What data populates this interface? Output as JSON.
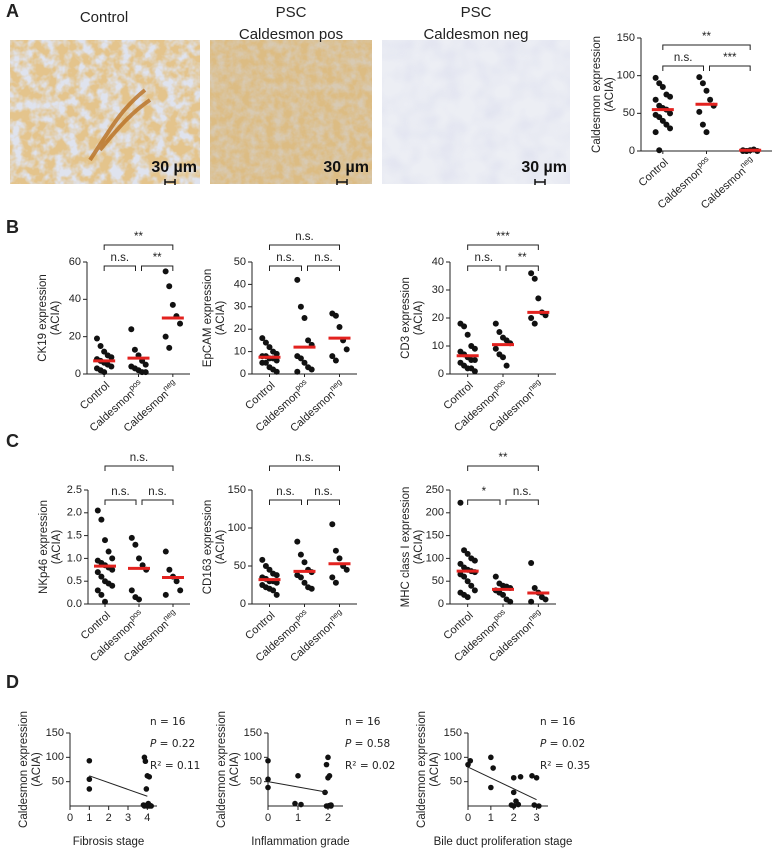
{
  "panel_labels": [
    "A",
    "B",
    "C",
    "D"
  ],
  "images": [
    {
      "caption": [
        "Control"
      ],
      "scale_bar": "30 µm"
    },
    {
      "caption": [
        "PSC",
        "Caldesmon pos"
      ],
      "scale_bar": "30 µm"
    },
    {
      "caption": [
        "PSC",
        "Caldesmon neg"
      ],
      "scale_bar": "30 µm"
    }
  ],
  "chart_data": [
    {
      "type": "dot",
      "ylabel": [
        "Caldesmon expression",
        "(ACIA)"
      ],
      "categories": [
        {
          "text": "Control"
        },
        {
          "text": "Caldesmon",
          "sup": "pos"
        },
        {
          "text": "Caldesmon",
          "sup": "neg"
        }
      ],
      "values": [
        [
          97,
          90,
          85,
          75,
          72,
          68,
          60,
          57,
          55,
          50,
          48,
          45,
          40,
          35,
          30,
          25,
          1
        ],
        [
          98,
          90,
          80,
          68,
          60,
          52,
          35,
          25
        ],
        [
          0,
          0,
          1,
          2,
          0,
          1,
          0
        ]
      ],
      "means": [
        55,
        62,
        1
      ],
      "ylim": [
        0,
        150
      ],
      "yticks": [
        0,
        50,
        100,
        150
      ],
      "brackets": [
        {
          "between": [
            0,
            2
          ],
          "label": "**"
        },
        {
          "between": [
            0,
            1
          ],
          "label": "n.s."
        },
        {
          "between": [
            1,
            2
          ],
          "label": "***"
        }
      ]
    },
    {
      "type": "dot",
      "ylabel": [
        "CK19 expression",
        "(ACIA)"
      ],
      "categories": [
        {
          "text": "Control"
        },
        {
          "text": "Caldesmon",
          "sup": "pos"
        },
        {
          "text": "Caldesmon",
          "sup": "neg"
        }
      ],
      "values": [
        [
          19,
          15,
          12,
          10,
          9,
          8,
          7,
          6,
          5,
          4,
          3,
          2,
          1
        ],
        [
          24,
          13,
          10,
          7,
          5,
          4,
          3,
          2,
          1,
          1
        ],
        [
          55,
          47,
          37,
          31,
          27,
          20,
          14
        ]
      ],
      "means": [
        7,
        8.5,
        30
      ],
      "ylim": [
        0,
        60
      ],
      "yticks": [
        0,
        20,
        40,
        60
      ],
      "brackets": [
        {
          "between": [
            0,
            2
          ],
          "label": "**"
        },
        {
          "between": [
            0,
            1
          ],
          "label": "n.s."
        },
        {
          "between": [
            1,
            2
          ],
          "label": "**"
        }
      ]
    },
    {
      "type": "dot",
      "ylabel": [
        "EpCAM expression",
        "(ACIA)"
      ],
      "categories": [
        {
          "text": "Control"
        },
        {
          "text": "Caldesmon",
          "sup": "pos"
        },
        {
          "text": "Caldesmon",
          "sup": "neg"
        }
      ],
      "values": [
        [
          16,
          14,
          12,
          10,
          9,
          8,
          8,
          7,
          7,
          6,
          5,
          5,
          3,
          2,
          1
        ],
        [
          42,
          30,
          25,
          15,
          13,
          8,
          7,
          5,
          3,
          2,
          1
        ],
        [
          27,
          26,
          21,
          15,
          11,
          8,
          6
        ]
      ],
      "means": [
        7.5,
        12,
        16
      ],
      "ylim": [
        0,
        50
      ],
      "yticks": [
        0,
        10,
        20,
        30,
        40,
        50
      ],
      "brackets": [
        {
          "between": [
            0,
            2
          ],
          "label": "n.s."
        },
        {
          "between": [
            0,
            1
          ],
          "label": "n.s."
        },
        {
          "between": [
            1,
            2
          ],
          "label": "n.s."
        }
      ]
    },
    {
      "type": "dot",
      "ylabel": [
        "CD3 expression",
        "(ACIA)"
      ],
      "categories": [
        {
          "text": "Control"
        },
        {
          "text": "Caldesmon",
          "sup": "pos"
        },
        {
          "text": "Caldesmon",
          "sup": "neg"
        }
      ],
      "values": [
        [
          18,
          17,
          14,
          10,
          9,
          8,
          7,
          6,
          5,
          5,
          4,
          3,
          2,
          2,
          1
        ],
        [
          18,
          15,
          13,
          12,
          11,
          9,
          7,
          6,
          3
        ],
        [
          36,
          34,
          27,
          22,
          21,
          20,
          18
        ]
      ],
      "means": [
        6.5,
        10.5,
        22
      ],
      "ylim": [
        0,
        40
      ],
      "yticks": [
        0,
        10,
        20,
        30,
        40
      ],
      "brackets": [
        {
          "between": [
            0,
            2
          ],
          "label": "***"
        },
        {
          "between": [
            0,
            1
          ],
          "label": "n.s."
        },
        {
          "between": [
            1,
            2
          ],
          "label": "**"
        }
      ]
    },
    {
      "type": "dot",
      "ylabel": [
        "NKp46 expression",
        "(ACIA)"
      ],
      "categories": [
        {
          "text": "Control"
        },
        {
          "text": "Caldesmon",
          "sup": "pos"
        },
        {
          "text": "Caldesmon",
          "sup": "neg"
        }
      ],
      "values": [
        [
          2.05,
          1.85,
          1.4,
          1.15,
          1.0,
          0.95,
          0.9,
          0.85,
          0.8,
          0.75,
          0.7,
          0.6,
          0.5,
          0.45,
          0.4,
          0.3,
          0.2,
          0.05
        ],
        [
          1.45,
          1.3,
          1.0,
          0.85,
          0.75,
          0.3,
          0.15,
          0.1
        ],
        [
          1.15,
          0.75,
          0.6,
          0.5,
          0.3,
          0.2
        ]
      ],
      "means": [
        0.83,
        0.78,
        0.58
      ],
      "ylim": [
        0,
        2.5
      ],
      "yticks": [
        {
          "value": 0,
          "label": "0.0"
        },
        0.5,
        {
          "value": 1,
          "label": "1.0"
        },
        1.5,
        {
          "value": 2,
          "label": "2.0"
        },
        2.5
      ],
      "brackets": [
        {
          "between": [
            0,
            2
          ],
          "label": "n.s."
        },
        {
          "between": [
            0,
            1
          ],
          "label": "n.s."
        },
        {
          "between": [
            1,
            2
          ],
          "label": "n.s."
        }
      ]
    },
    {
      "type": "dot",
      "ylabel": [
        "CD163 expression",
        "(ACIA)"
      ],
      "categories": [
        {
          "text": "Control"
        },
        {
          "text": "Caldesmon",
          "sup": "pos"
        },
        {
          "text": "Caldesmon",
          "sup": "neg"
        }
      ],
      "values": [
        [
          58,
          50,
          45,
          40,
          38,
          35,
          33,
          30,
          30,
          28,
          25,
          22,
          20,
          18,
          12
        ],
        [
          82,
          65,
          55,
          45,
          42,
          38,
          35,
          28,
          22,
          20
        ],
        [
          105,
          70,
          60,
          50,
          45,
          35,
          28
        ]
      ],
      "means": [
        32,
        43,
        53
      ],
      "ylim": [
        0,
        150
      ],
      "yticks": [
        0,
        50,
        100,
        150
      ],
      "brackets": [
        {
          "between": [
            0,
            2
          ],
          "label": "n.s."
        },
        {
          "between": [
            0,
            1
          ],
          "label": "n.s."
        },
        {
          "between": [
            1,
            2
          ],
          "label": "n.s."
        }
      ]
    },
    {
      "type": "dot",
      "ylabel": [
        "MHC class I expression",
        "(ACIA)"
      ],
      "categories": [
        {
          "text": "Control"
        },
        {
          "text": "Caldesmon",
          "sup": "pos"
        },
        {
          "text": "Caldesmon",
          "sup": "neg"
        }
      ],
      "values": [
        [
          222,
          118,
          110,
          100,
          95,
          88,
          80,
          75,
          72,
          70,
          65,
          60,
          50,
          40,
          30,
          25,
          20,
          15
        ],
        [
          60,
          45,
          40,
          38,
          35,
          30,
          25,
          20,
          10,
          5
        ],
        [
          90,
          35,
          25,
          15,
          10,
          5
        ]
      ],
      "means": [
        72,
        32,
        24
      ],
      "ylim": [
        0,
        250
      ],
      "yticks": [
        0,
        50,
        100,
        150,
        200,
        250
      ],
      "brackets": [
        {
          "between": [
            0,
            2
          ],
          "label": "**"
        },
        {
          "between": [
            0,
            1
          ],
          "label": "*"
        },
        {
          "between": [
            1,
            2
          ],
          "label": "n.s."
        }
      ]
    },
    {
      "type": "scatter",
      "ylabel": [
        "Caldesmon expression",
        "(ACIA)"
      ],
      "xlabel": "Fibrosis stage",
      "x": [
        1,
        1,
        1,
        3.85,
        3.9,
        4,
        4.1,
        3.95,
        4.05,
        3.8,
        3.9,
        4,
        4.1,
        4.2,
        3.85,
        4.15
      ],
      "y": [
        93,
        55,
        35,
        100,
        92,
        62,
        60,
        35,
        5,
        2,
        1,
        0,
        0,
        0,
        0,
        1
      ],
      "xlim": [
        0,
        4.5
      ],
      "xticks": [
        0,
        1,
        2,
        3,
        4
      ],
      "ylim": [
        0,
        150
      ],
      "yticks": [
        50,
        100,
        150
      ],
      "fit": {
        "x": [
          1,
          4
        ],
        "y": [
          62,
          20
        ]
      },
      "stats": {
        "n": "n = 16",
        "p_symbol": "P",
        "p": " = 0.22",
        "r2": "R² = 0.11"
      }
    },
    {
      "type": "scatter",
      "ylabel": [
        "Caldesmon expression",
        "(ACIA)"
      ],
      "xlabel": "Inflammation grade",
      "x": [
        0,
        0,
        0,
        1,
        0.9,
        1.1,
        2,
        1.95,
        2.05,
        2,
        1.9,
        2.1,
        2,
        1.95,
        2.1,
        2.05
      ],
      "y": [
        93,
        55,
        38,
        62,
        5,
        3,
        100,
        85,
        62,
        58,
        28,
        2,
        0,
        0,
        0,
        1
      ],
      "xlim": [
        0,
        2.5
      ],
      "xticks": [
        0,
        1,
        2
      ],
      "ylim": [
        0,
        150
      ],
      "yticks": [
        50,
        100,
        150
      ],
      "fit": {
        "x": [
          0,
          2
        ],
        "y": [
          50,
          28
        ]
      },
      "stats": {
        "n": "n = 16",
        "p_symbol": "P",
        "p": " = 0.58",
        "r2": "R² = 0.02"
      }
    },
    {
      "type": "scatter",
      "ylabel": [
        "Caldesmon expression",
        "(ACIA)"
      ],
      "xlabel": "Bile duct proliferation stage",
      "x": [
        0,
        0.1,
        1,
        1,
        1.1,
        2,
        2,
        2.1,
        1.9,
        2,
        2.2,
        2.3,
        2.8,
        3,
        2.9,
        3.1
      ],
      "y": [
        85,
        93,
        100,
        38,
        78,
        58,
        28,
        10,
        2,
        0,
        3,
        60,
        62,
        58,
        2,
        0
      ],
      "xlim": [
        0,
        3.5
      ],
      "xticks": [
        0,
        1,
        2,
        3
      ],
      "ylim": [
        0,
        150
      ],
      "yticks": [
        50,
        100,
        150
      ],
      "fit": {
        "x": [
          0,
          3
        ],
        "y": [
          80,
          13
        ]
      },
      "stats": {
        "n": "n = 16",
        "p_symbol": "P",
        "p": " = 0.02",
        "r2": "R² = 0.35"
      }
    }
  ]
}
